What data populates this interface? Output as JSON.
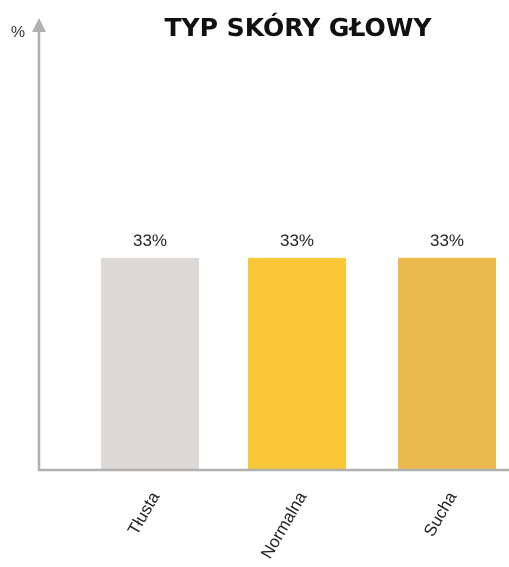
{
  "chart_data": {
    "type": "bar",
    "title": "TYP SKÓRY GŁOWY",
    "ylabel": "%",
    "xlabel": "",
    "categories": [
      "Tłusta",
      "Normalna",
      "Sucha"
    ],
    "values": [
      33,
      33,
      33
    ],
    "value_labels": [
      "33%",
      "33%",
      "33%"
    ],
    "bar_colors": [
      "#dcd9d6",
      "#f8c838",
      "#ebba4c"
    ],
    "axis_color": "#b0b0b0",
    "ylim": [
      0,
      70
    ],
    "grid": false,
    "legend": "none"
  }
}
